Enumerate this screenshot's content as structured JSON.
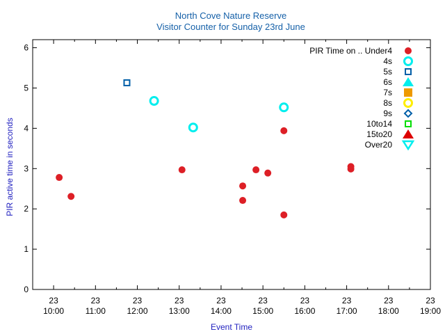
{
  "chart_data": {
    "type": "scatter",
    "title": "North Cove Nature Reserve",
    "subtitle": "Visitor Counter for Sunday 23rd June",
    "xlabel": "Event Time",
    "ylabel": "PIR active time in seconds",
    "xlim": [
      "09:30",
      "19:00"
    ],
    "ylim": [
      0,
      6.2
    ],
    "yticks": [
      0,
      1,
      2,
      3,
      4,
      5,
      6
    ],
    "xticks": [
      {
        "day": "23",
        "time": "10:00"
      },
      {
        "day": "23",
        "time": "11:00"
      },
      {
        "day": "23",
        "time": "12:00"
      },
      {
        "day": "23",
        "time": "13:00"
      },
      {
        "day": "23",
        "time": "14:00"
      },
      {
        "day": "23",
        "time": "15:00"
      },
      {
        "day": "23",
        "time": "16:00"
      },
      {
        "day": "23",
        "time": "17:00"
      },
      {
        "day": "23",
        "time": "18:00"
      },
      {
        "day": "23",
        "time": "19:00"
      }
    ],
    "grid": false,
    "legend_position": "top-right",
    "series": [
      {
        "name": "PIR Time on .. Under4",
        "marker": "filled-circle",
        "color": "#dd1f26",
        "points": [
          {
            "x": "10:08",
            "y": 2.78
          },
          {
            "x": "10:25",
            "y": 2.31
          },
          {
            "x": "13:04",
            "y": 2.97
          },
          {
            "x": "14:31",
            "y": 2.57
          },
          {
            "x": "14:31",
            "y": 2.21
          },
          {
            "x": "14:50",
            "y": 2.97
          },
          {
            "x": "15:07",
            "y": 2.89
          },
          {
            "x": "15:30",
            "y": 3.94
          },
          {
            "x": "15:30",
            "y": 1.85
          },
          {
            "x": "17:06",
            "y": 3.05
          },
          {
            "x": "17:06",
            "y": 2.99
          }
        ]
      },
      {
        "name": "4s",
        "marker": "open-circle",
        "color": "#00eeee",
        "points": [
          {
            "x": "12:24",
            "y": 4.68
          },
          {
            "x": "13:20",
            "y": 4.02
          },
          {
            "x": "15:30",
            "y": 4.52
          }
        ]
      },
      {
        "name": "5s",
        "marker": "open-square",
        "color": "#005fa8",
        "points": [
          {
            "x": "11:45",
            "y": 5.13
          }
        ]
      },
      {
        "name": "6s",
        "marker": "filled-triangle-up",
        "color": "#00eeee",
        "points": []
      },
      {
        "name": "7s",
        "marker": "filled-square",
        "color": "#ee9a00",
        "points": []
      },
      {
        "name": "8s",
        "marker": "open-circle",
        "color": "#ffee00",
        "points": []
      },
      {
        "name": "9s",
        "marker": "open-diamond",
        "color": "#005fa8",
        "points": []
      },
      {
        "name": "10to14",
        "marker": "open-square",
        "color": "#00dd00",
        "points": []
      },
      {
        "name": "15to20",
        "marker": "filled-triangle-up",
        "color": "#dd0000",
        "points": []
      },
      {
        "name": "Over20",
        "marker": "open-triangle-down",
        "color": "#00eeee",
        "points": []
      }
    ]
  }
}
